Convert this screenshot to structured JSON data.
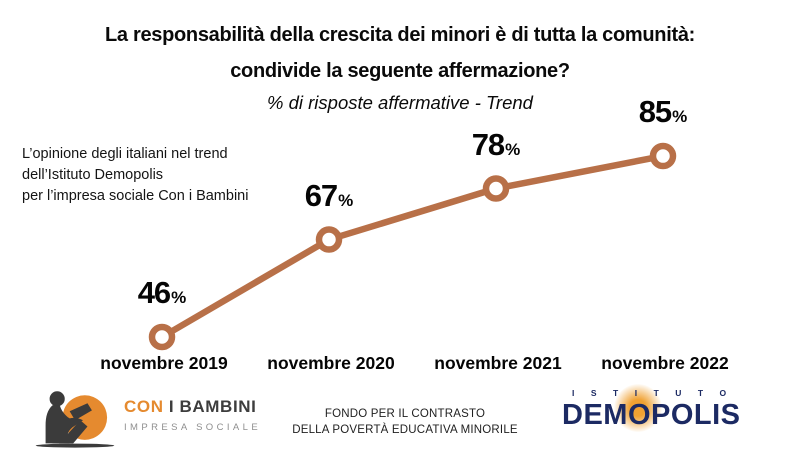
{
  "header": {
    "title_line1": "La responsabilità della crescita dei minori è di tutta la comunità:",
    "title_line2": "condivide la seguente affermazione?",
    "subtitle": "% di risposte affermative - Trend"
  },
  "annotation": {
    "line1": "L’opinione degli italiani nel trend",
    "line2": "dell’Istituto Demopolis",
    "line3": "per l’impresa sociale Con i Bambini"
  },
  "chart_data": {
    "type": "line",
    "categories": [
      "novembre 2019",
      "novembre 2020",
      "novembre 2021",
      "novembre 2022"
    ],
    "values": [
      46,
      67,
      78,
      85
    ],
    "unit": "%",
    "title": "% di risposte affermative - Trend",
    "xlabel": "",
    "ylabel": "% di risposte affermative",
    "ylim": [
      40,
      90
    ],
    "grid": false,
    "legend": "none",
    "marker": "open-circle",
    "line_color": "#B87048",
    "label_color": "#050505"
  },
  "footer": {
    "conibambini": {
      "name_orange": "CON",
      "name_dark": " I BAMBINI",
      "tagline": "IMPRESA SOCIALE",
      "orange_color": "#E58A2F",
      "dark_color": "#3D3D3D"
    },
    "fondo_line1": "FONDO PER IL CONTRASTO",
    "fondo_line2": "DELLA POVERTÀ EDUCATIVA MINORILE",
    "demopolis": {
      "top_label": "ISTITUTO",
      "name": "DEMOPOLIS",
      "navy_color": "#1C2A63",
      "sun_color": "#F0A132"
    }
  }
}
